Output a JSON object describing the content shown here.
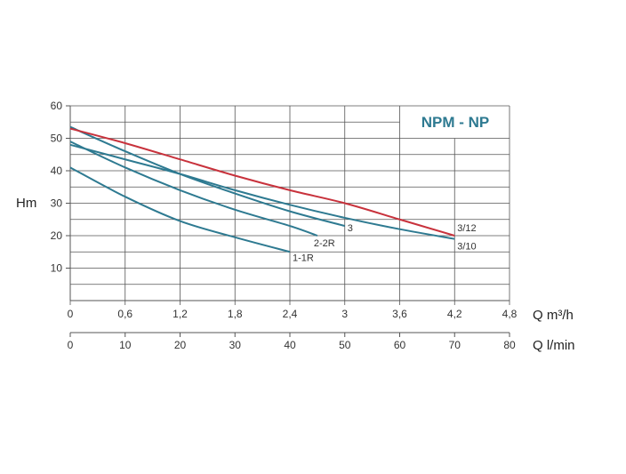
{
  "chart_data": {
    "type": "line",
    "title": "NPM - NP",
    "ylabel": "Hm",
    "xlabel": "Q m³/h",
    "xlabel_secondary": "Q l/min",
    "xlim": [
      0,
      4.8
    ],
    "ylim": [
      0,
      60
    ],
    "x_ticks": [
      "0",
      "0,6",
      "1,2",
      "1,8",
      "2,4",
      "3",
      "3,6",
      "4,2",
      "4,8"
    ],
    "x_tick_values": [
      0,
      0.6,
      1.2,
      1.8,
      2.4,
      3,
      3.6,
      4.2,
      4.8
    ],
    "x2_ticks": [
      "0",
      "10",
      "20",
      "30",
      "40",
      "50",
      "60",
      "70",
      "80"
    ],
    "x2_tick_values": [
      0,
      10,
      20,
      30,
      40,
      50,
      60,
      70,
      80
    ],
    "y_ticks": [
      "10",
      "20",
      "30",
      "40",
      "50",
      "60"
    ],
    "y_tick_values": [
      10,
      20,
      30,
      40,
      50,
      60
    ],
    "grid": true,
    "colors": {
      "blue": "#2e7a91",
      "red": "#c8323c",
      "title": "#2e7a91",
      "grid": "#555555"
    },
    "series": [
      {
        "name": "1-1R",
        "color": "#2e7a91",
        "x": [
          0,
          0.6,
          1.2,
          1.8,
          2.4
        ],
        "y": [
          41,
          32,
          24.5,
          19.5,
          15
        ]
      },
      {
        "name": "2-2R",
        "color": "#2e7a91",
        "x": [
          0,
          0.6,
          1.2,
          1.8,
          2.4,
          2.7
        ],
        "y": [
          49,
          41,
          34,
          28,
          23,
          20
        ]
      },
      {
        "name": "3",
        "color": "#2e7a91",
        "x": [
          0,
          0.6,
          1.2,
          1.8,
          2.4,
          3
        ],
        "y": [
          53.5,
          46,
          39,
          33,
          27.5,
          23
        ]
      },
      {
        "name": "3/10",
        "color": "#2e7a91",
        "x": [
          0,
          0.6,
          1.2,
          1.8,
          2.4,
          3,
          3.6,
          4.2
        ],
        "y": [
          48,
          43.5,
          39,
          34,
          29.5,
          25.5,
          22,
          19
        ]
      },
      {
        "name": "3/12",
        "color": "#c8323c",
        "x": [
          0,
          0.6,
          1.2,
          1.8,
          2.4,
          3,
          3.6,
          4.2
        ],
        "y": [
          53,
          48.5,
          43.5,
          38.5,
          34,
          30,
          25,
          20
        ]
      }
    ]
  }
}
